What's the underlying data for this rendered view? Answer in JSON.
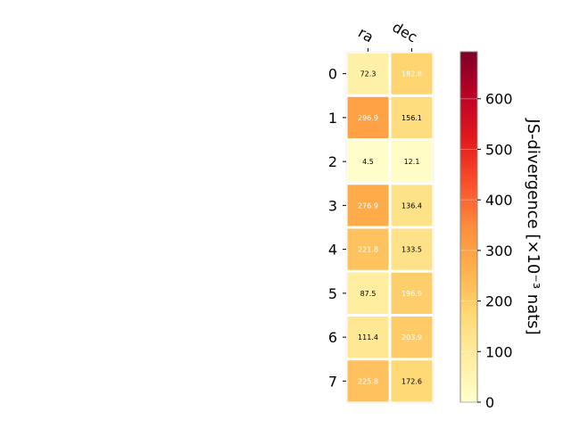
{
  "chart_data": {
    "type": "heatmap",
    "columns": [
      "ra",
      "dec"
    ],
    "rows": [
      "0",
      "1",
      "2",
      "3",
      "4",
      "5",
      "6",
      "7"
    ],
    "values": [
      [
        72.3,
        182.8
      ],
      [
        296.9,
        156.1
      ],
      [
        4.5,
        12.1
      ],
      [
        276.9,
        136.4
      ],
      [
        221.8,
        133.5
      ],
      [
        87.5,
        196.9
      ],
      [
        111.4,
        203.9
      ],
      [
        225.8,
        172.6
      ]
    ],
    "value_labels": [
      [
        "72.3",
        "182.8"
      ],
      [
        "296.9",
        "156.1"
      ],
      [
        "4.5",
        "12.1"
      ],
      [
        "276.9",
        "136.4"
      ],
      [
        "221.8",
        "133.5"
      ],
      [
        "87.5",
        "196.9"
      ],
      [
        "111.4",
        "203.9"
      ],
      [
        "225.8",
        "172.6"
      ]
    ],
    "colorbar": {
      "label": "JS-divergence [×10⁻³ nats]",
      "min": 0,
      "max": 693,
      "ticks": [
        0,
        100,
        200,
        300,
        400,
        500,
        600
      ],
      "tick_labels": [
        "0",
        "100",
        "200",
        "300",
        "400",
        "500",
        "600"
      ],
      "colormap": "YlOrRd"
    }
  }
}
